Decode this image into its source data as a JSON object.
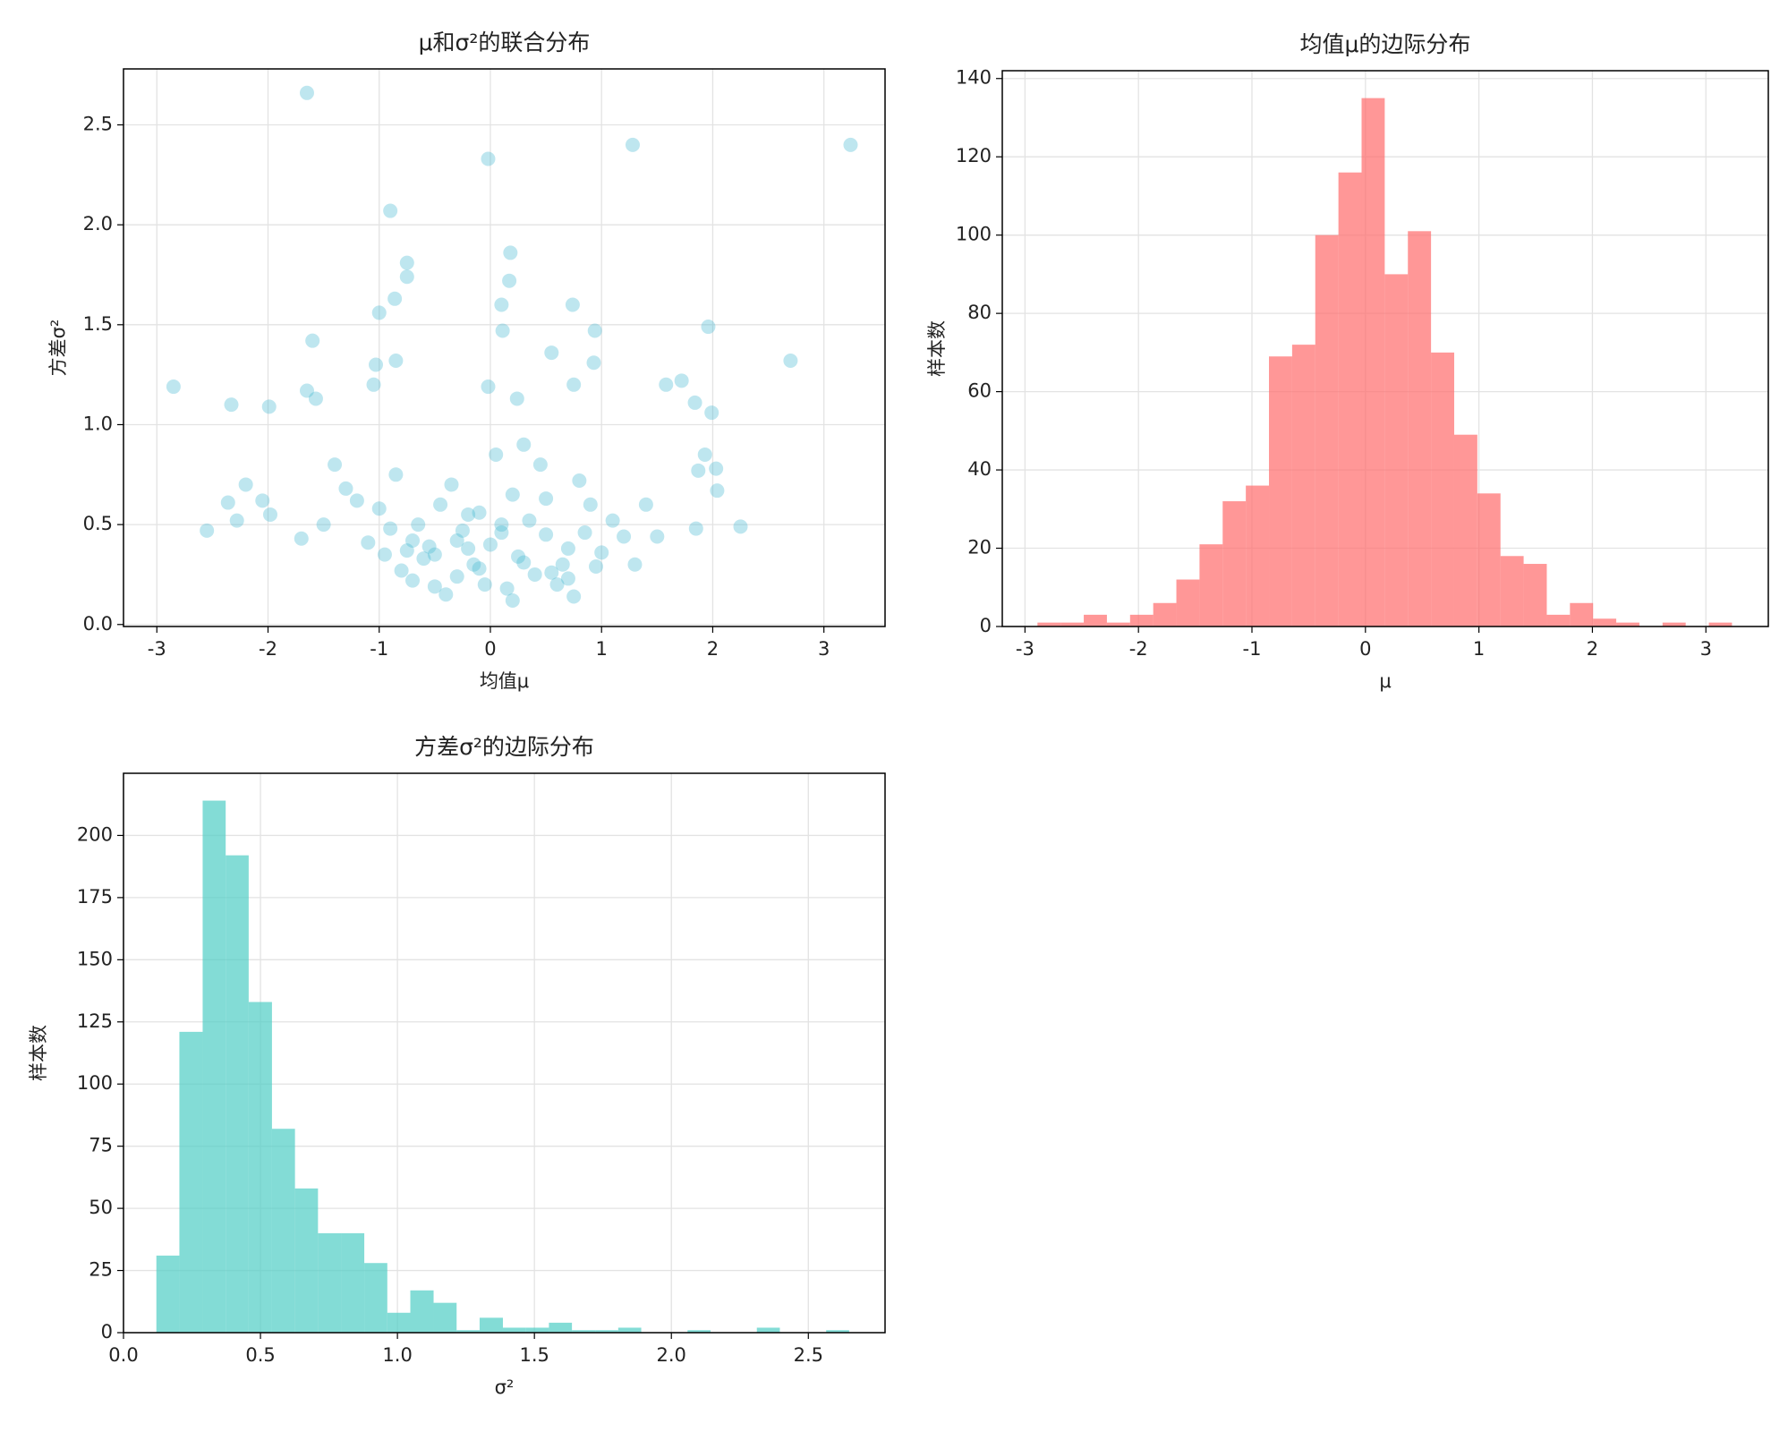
{
  "chart_data": [
    {
      "type": "scatter",
      "title": "μ和σ²的联合分布",
      "xlabel": "均值μ",
      "ylabel": "方差σ²",
      "color": "#45b7d1",
      "alpha": 0.35,
      "grid": true,
      "x": [
        -1.65,
        1.28,
        3.24,
        -0.02,
        -0.9,
        0.18,
        -0.75,
        -0.75,
        0.17,
        -0.86,
        0.1,
        0.74,
        -1,
        1.96,
        0.11,
        0.94,
        -1.6,
        0.55,
        -0.85,
        -1.03,
        0.93,
        2.7,
        -2.85,
        -2.33,
        -1.99,
        -1.65,
        -1.57,
        1.72,
        1.58,
        0.75,
        -0.02,
        -1.05,
        0.24,
        1.84,
        1.99,
        -2.2,
        -2.36,
        -2.05,
        -2.28,
        -2.55,
        -1.98,
        -1.7,
        2.25,
        1.85,
        2.04,
        2.03,
        1.87,
        1.93,
        -0.5,
        -0.3,
        -0.1,
        0.1,
        0.3,
        0.5,
        0.7,
        -0.7,
        0.9,
        -0.9,
        -0.4,
        0.2,
        0.4,
        -0.2,
        0,
        0.6,
        -0.6,
        0.8,
        -0.8,
        1.0,
        -1.0,
        1.2,
        -1.2,
        0.15,
        -0.15,
        0.35,
        -0.35,
        0.55,
        -0.55,
        0.25,
        -0.25,
        0.45,
        -0.45,
        0.65,
        -0.65,
        0.05,
        -0.05,
        1.1,
        -1.1,
        1.3,
        -1.3,
        1.5,
        -1.5,
        0.75,
        -0.75,
        0.85,
        -0.85,
        0.95,
        -0.95,
        1.4,
        -1.4,
        0.3,
        -0.3,
        0.1,
        -0.1,
        0.5,
        -0.5,
        0.7,
        -0.7,
        0.2,
        -0.2
      ],
      "y": [
        2.66,
        2.4,
        2.4,
        2.33,
        2.07,
        1.86,
        1.81,
        1.74,
        1.72,
        1.63,
        1.6,
        1.6,
        1.56,
        1.49,
        1.47,
        1.47,
        1.42,
        1.36,
        1.32,
        1.3,
        1.31,
        1.32,
        1.19,
        1.1,
        1.09,
        1.17,
        1.13,
        1.22,
        1.2,
        1.2,
        1.19,
        1.2,
        1.13,
        1.11,
        1.06,
        0.7,
        0.61,
        0.62,
        0.52,
        0.47,
        0.55,
        0.43,
        0.49,
        0.48,
        0.67,
        0.78,
        0.77,
        0.85,
        0.35,
        0.42,
        0.28,
        0.5,
        0.31,
        0.45,
        0.38,
        0.22,
        0.6,
        0.48,
        0.15,
        0.65,
        0.25,
        0.55,
        0.4,
        0.2,
        0.33,
        0.72,
        0.27,
        0.36,
        0.58,
        0.44,
        0.62,
        0.18,
        0.3,
        0.52,
        0.7,
        0.26,
        0.39,
        0.34,
        0.47,
        0.8,
        0.6,
        0.3,
        0.5,
        0.85,
        0.2,
        0.52,
        0.41,
        0.3,
        0.68,
        0.44,
        0.5,
        0.14,
        0.37,
        0.46,
        0.75,
        0.29,
        0.35,
        0.6,
        0.8,
        0.9,
        0.24,
        0.46,
        0.56,
        0.63,
        0.19,
        0.23,
        0.42,
        0.12,
        0.38
      ],
      "xlim": [
        -3.3,
        3.55
      ],
      "xticks": [
        -3,
        -2,
        -1,
        0,
        1,
        2,
        3
      ],
      "ylim": [
        -0.01,
        2.78
      ],
      "yticks": [
        {
          "value": 0,
          "label": "0.0"
        },
        {
          "value": 0.5,
          "label": "0.5"
        },
        {
          "value": 1,
          "label": "1.0"
        },
        {
          "value": 1.5,
          "label": "1.5"
        },
        {
          "value": 2,
          "label": "2.0"
        },
        {
          "value": 2.5,
          "label": "2.5"
        }
      ]
    },
    {
      "type": "histogram",
      "title": "均值μ的边际分布",
      "xlabel": "μ",
      "ylabel": "样本数",
      "color": "#ff6b6b",
      "alpha": 0.7,
      "grid": true,
      "bins": [
        -2.89,
        -2.686,
        -2.482,
        -2.278,
        -2.074,
        -1.87,
        -1.666,
        -1.462,
        -1.258,
        -1.054,
        -0.85,
        -0.646,
        -0.442,
        -0.238,
        -0.034,
        0.17,
        0.374,
        0.578,
        0.782,
        0.986,
        1.19,
        1.394,
        1.598,
        1.802,
        2.006,
        2.21,
        2.414,
        2.618,
        2.822,
        3.026,
        3.23
      ],
      "values": [
        1,
        1,
        3,
        1,
        3,
        6,
        12,
        21,
        32,
        36,
        69,
        72,
        100,
        116,
        135,
        90,
        101,
        70,
        49,
        34,
        18,
        16,
        3,
        6,
        2,
        1,
        0,
        1,
        0,
        1
      ],
      "xlim": [
        -3.2,
        3.55
      ],
      "xticks": [
        -3,
        -2,
        -1,
        0,
        1,
        2,
        3
      ],
      "ylim": [
        0,
        142
      ],
      "yticks": [
        0,
        20,
        40,
        60,
        80,
        100,
        120,
        140
      ]
    },
    {
      "type": "histogram",
      "title": "方差σ²的边际分布",
      "xlabel": "σ²",
      "ylabel": "样本数",
      "color": "#4ecdc4",
      "alpha": 0.7,
      "grid": true,
      "bins": [
        0.12,
        0.204,
        0.289,
        0.373,
        0.457,
        0.542,
        0.626,
        0.71,
        0.794,
        0.879,
        0.963,
        1.047,
        1.132,
        1.216,
        1.3,
        1.385,
        1.469,
        1.553,
        1.637,
        1.722,
        1.806,
        1.89,
        1.975,
        2.059,
        2.143,
        2.228,
        2.312,
        2.396,
        2.48,
        2.565,
        2.649
      ],
      "values": [
        31,
        121,
        214,
        192,
        133,
        82,
        58,
        40,
        40,
        28,
        8,
        17,
        12,
        1,
        6,
        2,
        2,
        4,
        1,
        1,
        2,
        0,
        0,
        1,
        0,
        0,
        2,
        0,
        0,
        1
      ],
      "xlim": [
        0,
        2.78
      ],
      "xticks": [
        {
          "value": 0,
          "label": "0.0"
        },
        {
          "value": 0.5,
          "label": "0.5"
        },
        {
          "value": 1,
          "label": "1.0"
        },
        {
          "value": 1.5,
          "label": "1.5"
        },
        {
          "value": 2,
          "label": "2.0"
        },
        {
          "value": 2.5,
          "label": "2.5"
        }
      ],
      "ylim": [
        0,
        225
      ],
      "yticks": [
        0,
        25,
        50,
        75,
        100,
        125,
        150,
        175,
        200
      ]
    }
  ]
}
